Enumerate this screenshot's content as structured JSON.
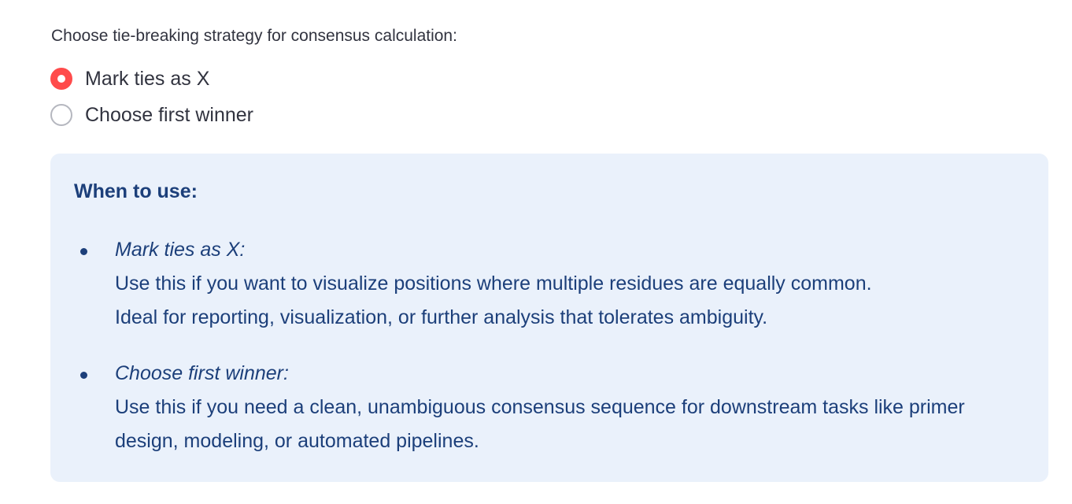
{
  "radio_group": {
    "label": "Choose tie-breaking strategy for consensus calculation:",
    "selected_index": 0,
    "options": [
      {
        "label": "Mark ties as X",
        "checked": true
      },
      {
        "label": "Choose first winner",
        "checked": false
      }
    ]
  },
  "info_box": {
    "title": "When to use:",
    "items": [
      {
        "heading": "Mark ties as X:",
        "lines": [
          "Use this if you want to visualize positions where multiple residues are equally common.",
          "Ideal for reporting, visualization, or further analysis that tolerates ambiguity."
        ]
      },
      {
        "heading": "Choose first winner:",
        "lines": [
          "Use this if you need a clean, unambiguous consensus sequence for downstream tasks like primer",
          "design, modeling, or automated pipelines."
        ]
      }
    ]
  },
  "colors": {
    "accent": "#ff4b4b",
    "text": "#31333f",
    "info_background": "#eaf1fb",
    "info_text": "#1c3f7a"
  }
}
